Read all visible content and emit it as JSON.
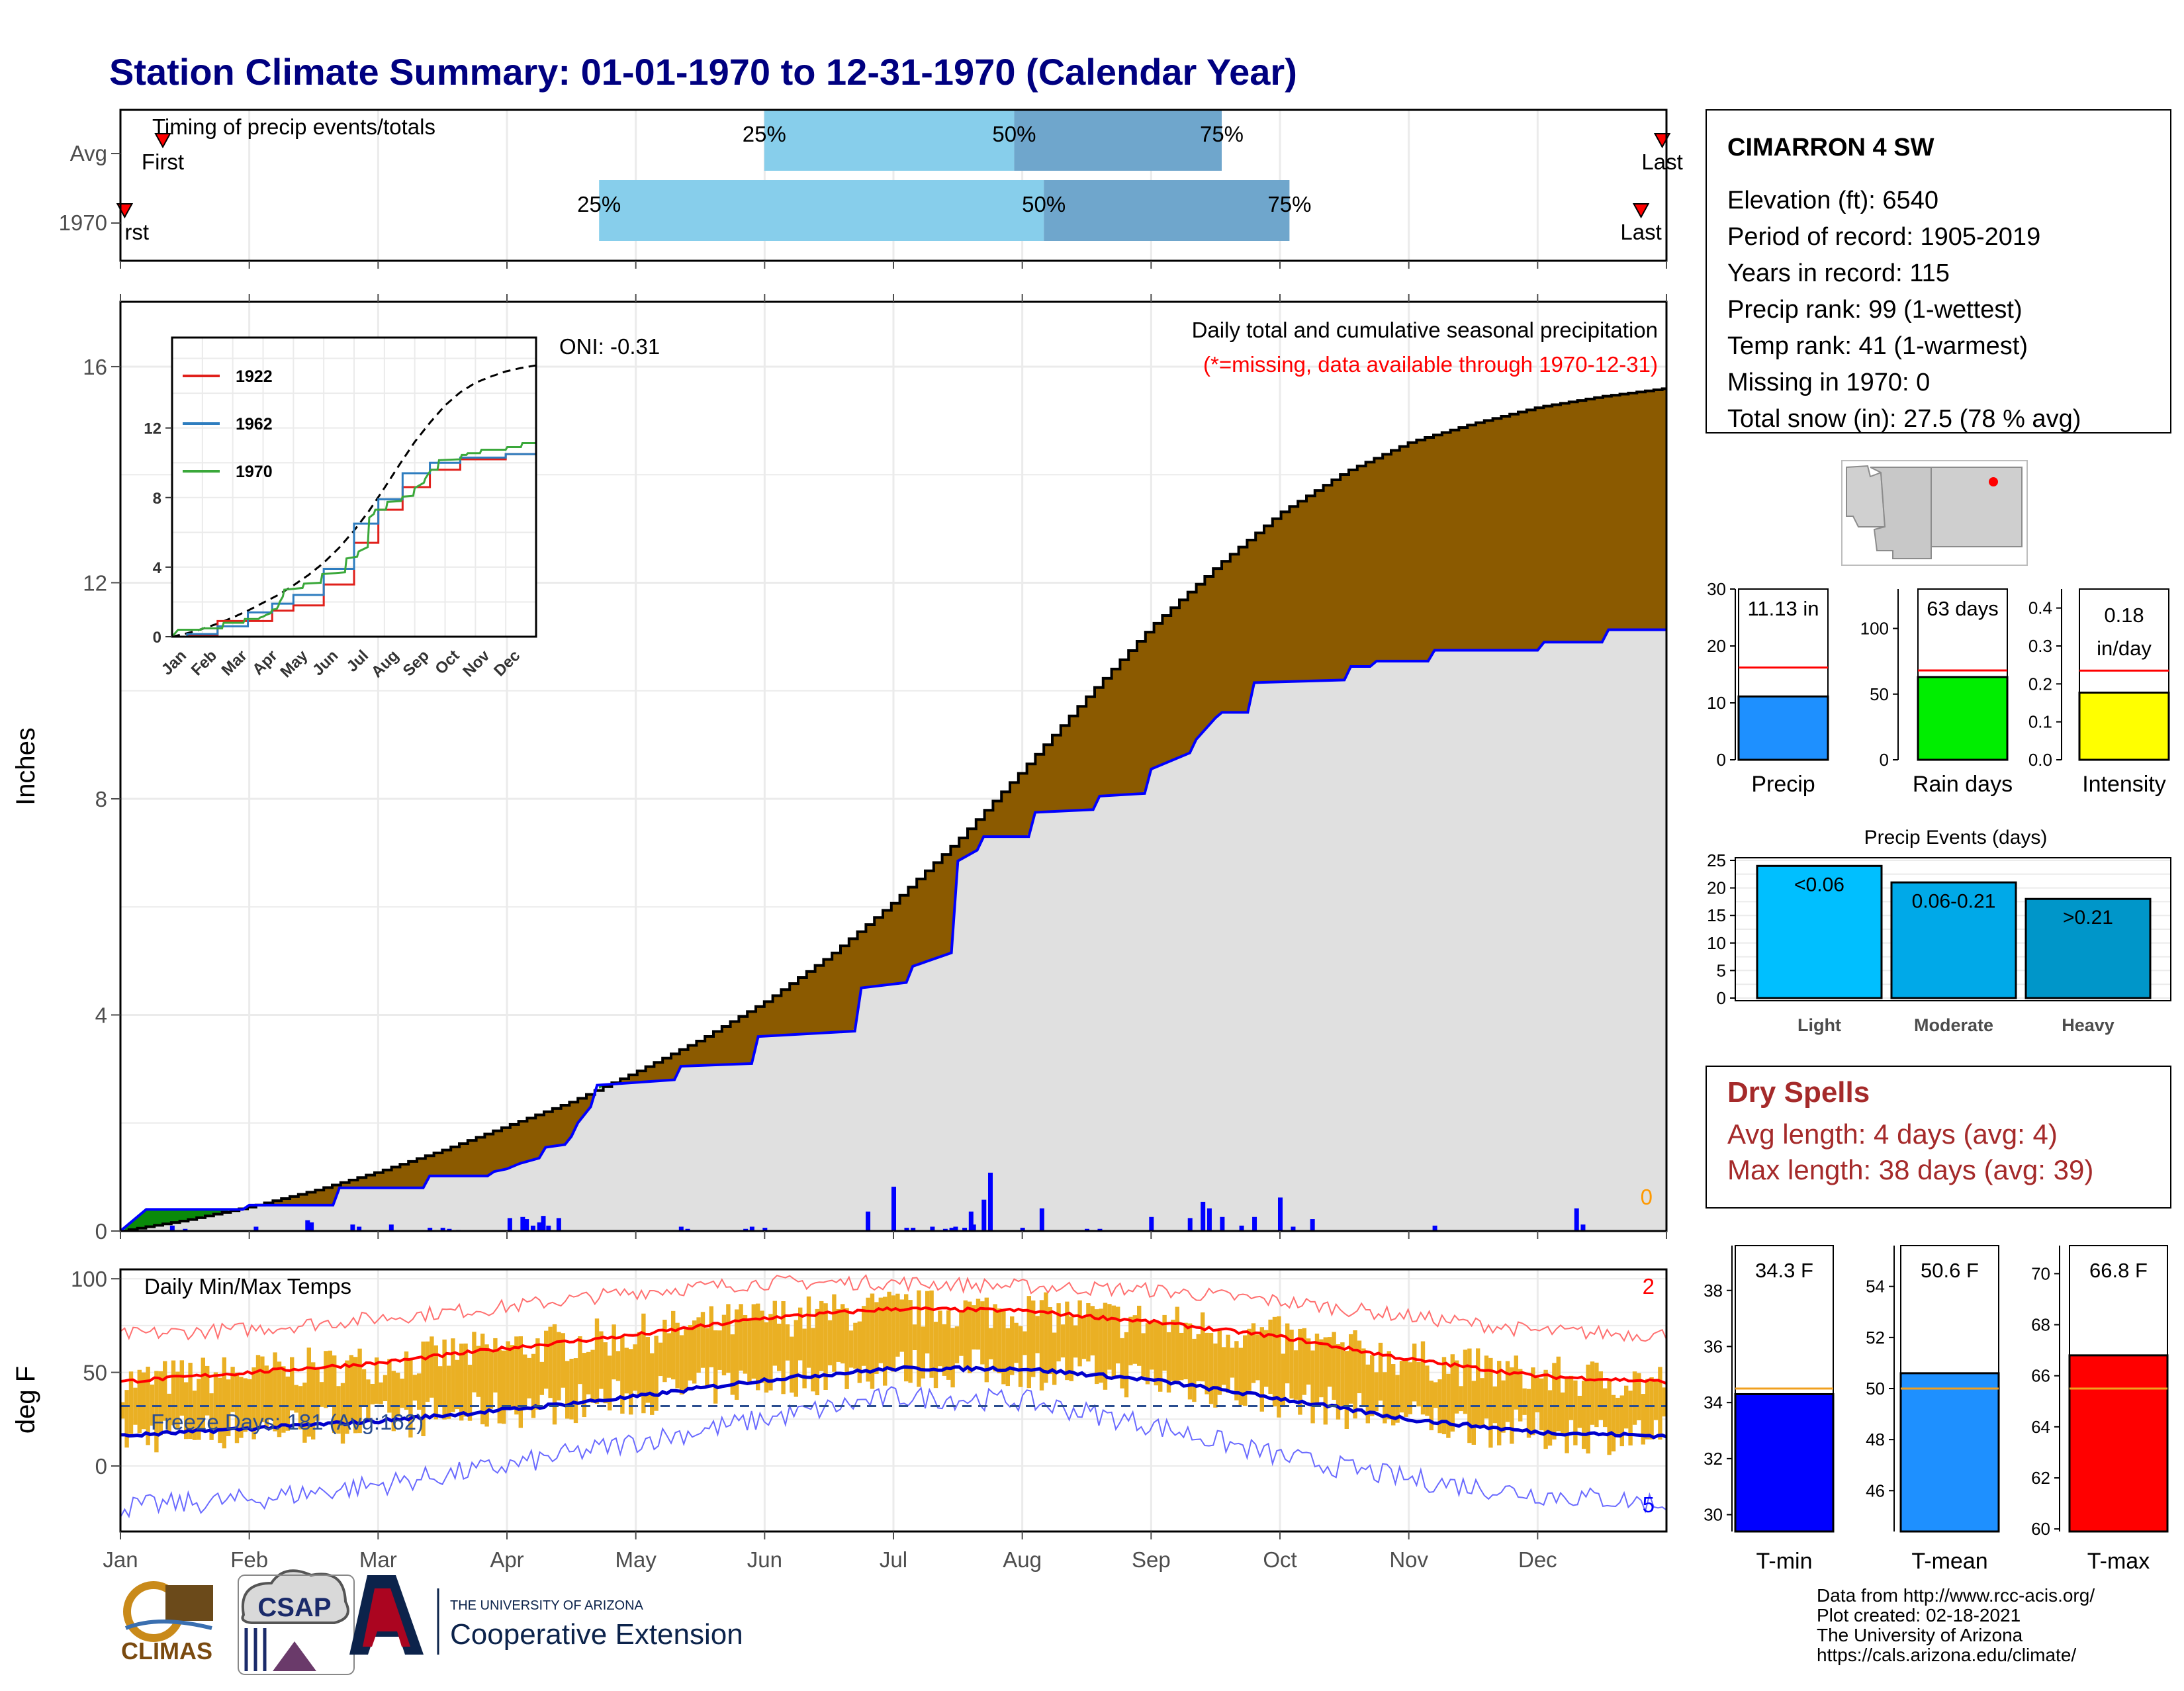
{
  "title": "Station Climate Summary: 01-01-1970 to 12-31-1970 (Calendar Year)",
  "months": [
    "Jan",
    "Feb",
    "Mar",
    "Apr",
    "May",
    "Jun",
    "Jul",
    "Aug",
    "Sep",
    "Oct",
    "Nov",
    "Dec"
  ],
  "timing": {
    "label": "Timing of precip events/totals",
    "rows": [
      "Avg",
      "1970"
    ],
    "first_label": "First",
    "first_label_clipped": "rst",
    "last_label": "Last",
    "pct25": "25%",
    "pct50": "50%",
    "pct75": "75%",
    "avg": {
      "first_doy": 10,
      "p25_doy": 152,
      "p50_doy": 211,
      "p75_doy": 260,
      "last_doy": 364
    },
    "y1970": {
      "first_doy": 1,
      "p25_doy": 113,
      "p50_doy": 218,
      "p75_doy": 276,
      "last_doy": 359
    }
  },
  "main_chart": {
    "ylabel": "Inches",
    "annotation_title": "Daily total and cumulative seasonal precipitation",
    "annotation_missing": "(*=missing, data available through 1970-12-31)",
    "oni": "ONI: -0.31",
    "missing_count": "0",
    "yticks": [
      "0",
      "4",
      "8",
      "12",
      "16"
    ]
  },
  "inset": {
    "yticks": [
      "0",
      "4",
      "8",
      "12"
    ],
    "legend": [
      "1922",
      "1962",
      "1970"
    ],
    "colors": {
      "1922": "#e0201b",
      "1962": "#2e7dbf",
      "1970": "#3aa83a"
    }
  },
  "temp_chart": {
    "ylabel": "deg F",
    "title": "Daily Min/Max Temps",
    "freeze": "Freeze Days: 181 (Avg:162)",
    "record_high_count": "2",
    "record_low_count": "5",
    "yticks": [
      "0",
      "50",
      "100"
    ]
  },
  "station": {
    "name": "CIMARRON 4 SW",
    "lines": [
      "Elevation (ft): 6540",
      "Period of record: 1905-2019",
      "Years in record: 115",
      "Precip rank: 99 (1-wettest)",
      "Temp rank: 41 (1-warmest)",
      "Missing in 1970: 0",
      "Total snow (in): 27.5 (78 % avg)"
    ]
  },
  "bars": {
    "precip": {
      "label": "Precip",
      "value_label": "11.13 in",
      "value": 11.13,
      "avg": 16.2,
      "ymax": 30,
      "ticks": [
        "0",
        "10",
        "20",
        "30"
      ],
      "color": "#1e90ff"
    },
    "raindays": {
      "label": "Rain days",
      "value_label": "63 days",
      "value": 63,
      "avg": 68,
      "ymax": 130,
      "ticks": [
        "0",
        "50",
        "100"
      ],
      "color": "#00ee00"
    },
    "intensity": {
      "label": "Intensity",
      "value_label": "0.18",
      "value_label2": "in/day",
      "value": 0.177,
      "avg": 0.235,
      "ymax": 0.45,
      "ticks": [
        "0.0",
        "0.1",
        "0.2",
        "0.3",
        "0.4"
      ],
      "color": "#ffff00"
    }
  },
  "events": {
    "title": "Precip Events (days)",
    "categories": [
      "Light",
      "Moderate",
      "Heavy"
    ],
    "values": [
      24,
      21,
      18
    ],
    "value_labels": [
      "<0.06",
      "0.06-0.21",
      ">0.21"
    ],
    "ticks": [
      "0",
      "5",
      "10",
      "15",
      "20",
      "25"
    ],
    "colors": [
      "#00bfff",
      "#00a9e8",
      "#0096c9"
    ]
  },
  "dry_spells": {
    "title": "Dry Spells",
    "avg": "Avg length: 4 days (avg: 4)",
    "max": "Max length: 38 days (avg: 39)"
  },
  "temp_bars": {
    "tmin": {
      "label": "T-min",
      "value_label": "34.3 F",
      "value": 34.3,
      "avg": 34.5,
      "ymin": 29.4,
      "ymax": 39.6,
      "ticks": [
        "30",
        "32",
        "34",
        "36",
        "38"
      ],
      "color": "#0000ff"
    },
    "tmean": {
      "label": "T-mean",
      "value_label": "50.6 F",
      "value": 50.6,
      "avg": 50.0,
      "ymin": 44.4,
      "ymax": 55.6,
      "ticks": [
        "46",
        "48",
        "50",
        "52",
        "54"
      ],
      "color": "#1e90ff"
    },
    "tmax": {
      "label": "T-max",
      "value_label": "66.8 F",
      "value": 66.8,
      "avg": 65.5,
      "ymin": 59.9,
      "ymax": 71.1,
      "ticks": [
        "60",
        "62",
        "64",
        "66",
        "68",
        "70"
      ],
      "color": "#ff0000"
    }
  },
  "footer": {
    "lines": [
      "Data from http://www.rcc-acis.org/",
      "Plot created: 02-18-2021",
      "The University of Arizona",
      "https://cals.arizona.edu/climate/"
    ],
    "logo_climas": "CLIMAS",
    "logo_csap": "CSAP",
    "logo_ua_small": "THE UNIVERSITY OF ARIZONA",
    "logo_ua_big": "Cooperative Extension"
  },
  "chart_data": {
    "type": "area",
    "title": "Daily total and cumulative seasonal precipitation",
    "ylabel": "Inches",
    "ylim": [
      0,
      17.2
    ],
    "x_unit": "month",
    "cumulative_avg": {
      "x": [
        0,
        0.5,
        1,
        1.5,
        2,
        2.5,
        3,
        3.5,
        4,
        4.5,
        5,
        5.5,
        6,
        6.5,
        7,
        7.5,
        8,
        8.5,
        9,
        9.5,
        10,
        10.5,
        11,
        11.5,
        12
      ],
      "values": [
        0.0,
        0.2,
        0.45,
        0.75,
        1.1,
        1.5,
        1.95,
        2.4,
        2.95,
        3.55,
        4.25,
        5.1,
        6.1,
        7.25,
        8.55,
        9.9,
        11.2,
        12.3,
        13.3,
        14.05,
        14.6,
        14.95,
        15.25,
        15.45,
        15.6
      ]
    },
    "cumulative_1970": {
      "x": [
        0,
        0.1,
        0.2,
        0.95,
        1.0,
        1.65,
        1.7,
        2.35,
        2.4,
        2.85,
        2.9,
        3.0,
        3.1,
        3.25,
        3.3,
        3.45,
        3.5,
        3.55,
        3.65,
        3.7,
        4.3,
        4.35,
        4.9,
        4.95,
        5.7,
        5.75,
        6.1,
        6.15,
        6.45,
        6.5,
        6.65,
        6.7,
        7.05,
        7.1,
        7.55,
        7.6,
        7.95,
        8.0,
        8.3,
        8.35,
        8.5,
        8.55,
        8.75,
        8.8,
        9.5,
        9.55,
        9.7,
        9.75,
        10.15,
        10.2,
        11.0,
        11.05,
        11.5,
        11.55,
        12.0
      ],
      "values": [
        0.0,
        0.2,
        0.4,
        0.4,
        0.48,
        0.48,
        0.8,
        0.8,
        1.02,
        1.02,
        1.1,
        1.15,
        1.25,
        1.35,
        1.55,
        1.6,
        1.75,
        2.0,
        2.3,
        2.7,
        2.8,
        3.05,
        3.1,
        3.6,
        3.7,
        4.5,
        4.6,
        4.9,
        5.15,
        6.85,
        7.05,
        7.3,
        7.3,
        7.75,
        7.8,
        8.05,
        8.1,
        8.55,
        8.85,
        9.1,
        9.5,
        9.6,
        9.6,
        10.15,
        10.2,
        10.45,
        10.45,
        10.55,
        10.55,
        10.75,
        10.75,
        10.9,
        10.9,
        11.13,
        11.13
      ]
    },
    "daily_1970": {
      "x": [
        0.4,
        0.5,
        1.05,
        1.45,
        1.48,
        1.8,
        1.85,
        2.1,
        2.4,
        2.5,
        2.55,
        2.62,
        3.02,
        3.12,
        3.15,
        3.2,
        3.25,
        3.28,
        3.32,
        3.4,
        4.35,
        4.4,
        4.85,
        4.9,
        5.0,
        5.8,
        6.0,
        6.1,
        6.15,
        6.3,
        6.4,
        6.45,
        6.48,
        6.55,
        6.6,
        6.62,
        6.7,
        6.75,
        7.0,
        7.15,
        7.5,
        7.6,
        8.0,
        8.3,
        8.4,
        8.45,
        8.55,
        8.7,
        8.8,
        9.0,
        9.1,
        9.25,
        10.2,
        11.3,
        11.35
      ],
      "values": [
        0.1,
        0.04,
        0.08,
        0.2,
        0.16,
        0.12,
        0.08,
        0.12,
        0.06,
        0.06,
        0.04,
        0.02,
        0.24,
        0.26,
        0.22,
        0.1,
        0.16,
        0.28,
        0.1,
        0.24,
        0.08,
        0.04,
        0.04,
        0.08,
        0.06,
        0.36,
        0.82,
        0.06,
        0.06,
        0.08,
        0.04,
        0.06,
        0.08,
        0.06,
        0.36,
        0.12,
        0.58,
        1.08,
        0.06,
        0.42,
        0.04,
        0.04,
        0.26,
        0.24,
        0.54,
        0.42,
        0.26,
        0.1,
        0.26,
        0.62,
        0.08,
        0.22,
        0.1,
        0.42,
        0.12
      ]
    },
    "temps": {
      "ylabel": "deg F",
      "ylim": [
        -35,
        105
      ],
      "avg_max": {
        "x": [
          0,
          1,
          2,
          3,
          4,
          5,
          6,
          7,
          8,
          9,
          10,
          11,
          12
        ],
        "values": [
          45,
          50,
          55,
          63,
          70,
          79,
          84,
          83,
          77,
          69,
          57,
          48,
          45
        ]
      },
      "avg_min": {
        "x": [
          0,
          1,
          2,
          3,
          4,
          5,
          6,
          7,
          8,
          9,
          10,
          11,
          12
        ],
        "values": [
          16,
          20,
          24,
          30,
          37,
          46,
          52,
          52,
          46,
          36,
          25,
          18,
          16
        ]
      },
      "record_max": {
        "x": [
          0,
          1,
          2,
          3,
          4,
          5,
          6,
          7,
          8,
          9,
          10,
          11,
          12
        ],
        "values": [
          70,
          73,
          79,
          85,
          93,
          98,
          98,
          96,
          94,
          88,
          80,
          72,
          70
        ]
      },
      "record_min": {
        "x": [
          0,
          1,
          2,
          3,
          4,
          5,
          6,
          7,
          8,
          9,
          10,
          11,
          12
        ],
        "values": [
          -22,
          -18,
          -10,
          0,
          13,
          25,
          37,
          35,
          22,
          5,
          -7,
          -15,
          -20
        ]
      },
      "freeze_line": 32
    }
  }
}
